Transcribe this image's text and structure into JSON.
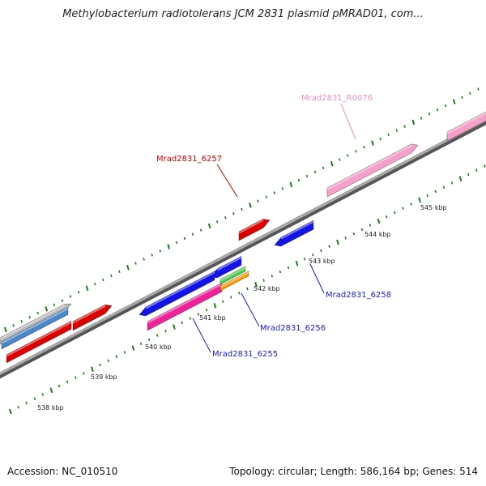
{
  "title": "Methylobacterium radiotolerans JCM 2831 plasmid pMRAD01, com...",
  "footer": {
    "accession": "Accession: NC_010510",
    "summary": "Topology: circular; Length: 586,164 bp; Genes: 514"
  },
  "scale": {
    "ticks": [
      {
        "label": "538 kbp",
        "kbp": 538
      },
      {
        "label": "539 kbp",
        "kbp": 539
      },
      {
        "label": "540 kbp",
        "kbp": 540
      },
      {
        "label": "541 kbp",
        "kbp": 541
      },
      {
        "label": "542 kbp",
        "kbp": 542
      },
      {
        "label": "543 kbp",
        "kbp": 543
      },
      {
        "label": "544 kbp",
        "kbp": 544
      },
      {
        "label": "545 kbp",
        "kbp": 545
      }
    ]
  },
  "features": [
    {
      "name": "Mrad2831_6257",
      "label": "Mrad2831_6257",
      "strand": "+",
      "color": "#dd0000",
      "labelColor": "#cc0000"
    },
    {
      "name": "Mrad2831_R0076",
      "label": "Mrad2831_R0076",
      "strand": "+",
      "color": "#f4a0c8",
      "labelColor": "#f090c0"
    },
    {
      "name": "Mrad2831_6258",
      "label": "Mrad2831_6258",
      "strand": "-",
      "color": "#1414e6",
      "labelColor": "#1a1acc"
    },
    {
      "name": "Mrad2831_6256",
      "label": "Mrad2831_6256",
      "strand": "-",
      "color": "#1414e6",
      "labelColor": "#1a1acc"
    },
    {
      "name": "Mrad2831_6255",
      "label": "Mrad2831_6255",
      "strand": "+",
      "color": "#ee2299",
      "labelColor": "#1a1acc"
    }
  ],
  "colors": {
    "backbone": "#888888",
    "tick": "#1f7a1f",
    "red": "#dd0000",
    "blue": "#1414e6",
    "pink": "#f4a0c8",
    "magenta": "#ee2299",
    "green": "#44cc44",
    "orange": "#ff9900",
    "steel": "#4a86c8",
    "gray": "#bbbbbb"
  }
}
